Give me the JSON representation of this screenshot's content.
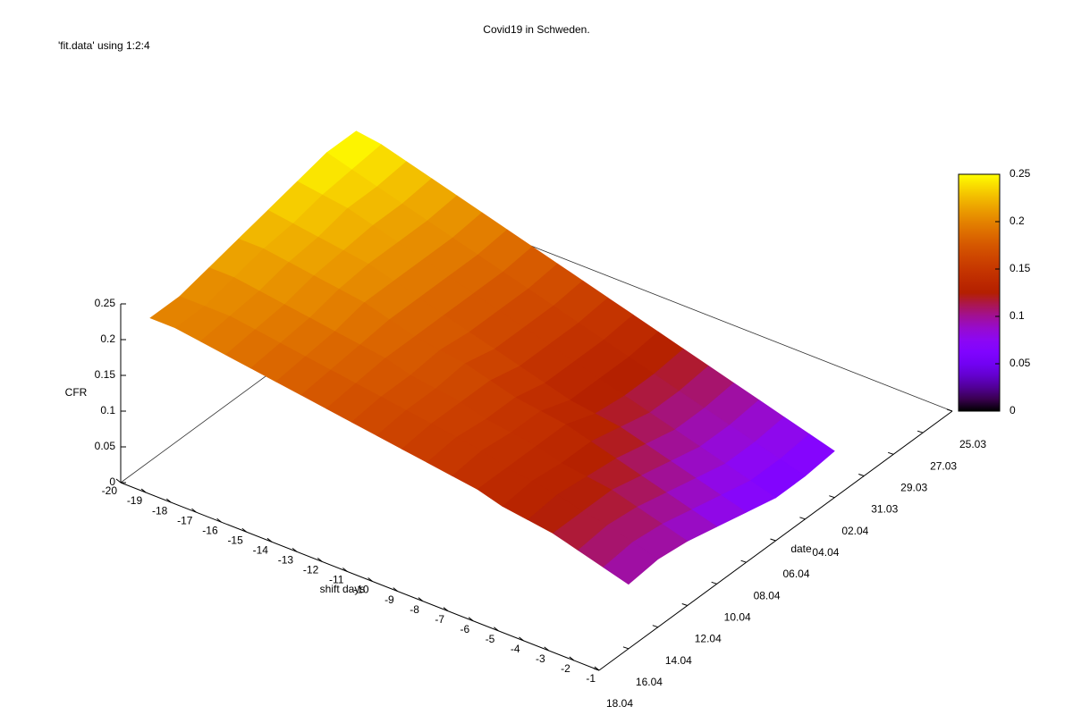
{
  "chart_data": {
    "type": "surface",
    "title": "Covid19 in Schweden.",
    "subtitle": "'fit.data' using 1:2:4",
    "xlabel": "shift days",
    "ylabel": "date",
    "zlabel": "CFR",
    "xlim": [
      -20,
      -1
    ],
    "xticks": [
      -20,
      -19,
      -18,
      -17,
      -16,
      -15,
      -14,
      -13,
      -12,
      -11,
      -10,
      -9,
      -8,
      -7,
      -6,
      -5,
      -4,
      -3,
      -2,
      -1
    ],
    "yticks": [
      "25.03",
      "27.03",
      "29.03",
      "31.03",
      "02.04",
      "04.04",
      "06.04",
      "08.04",
      "10.04",
      "12.04",
      "14.04",
      "16.04",
      "18.04"
    ],
    "zlim": [
      0,
      0.25
    ],
    "zticks": [
      0,
      0.05,
      0.1,
      0.15,
      0.2,
      0.25
    ],
    "cbticks": [
      0,
      0.05,
      0.1,
      0.15,
      0.2,
      0.25
    ],
    "palette": "gnuplot rgbformulae 7,5,15",
    "x": [
      -20,
      -19,
      -18,
      -17,
      -16,
      -15,
      -14,
      -13,
      -12,
      -11,
      -10,
      -9,
      -8,
      -7,
      -6,
      -5,
      -4,
      -3,
      -2,
      -1
    ],
    "rows": [
      {
        "date": "02.04",
        "values": [
          0.25,
          0.245,
          0.235,
          0.225,
          0.215,
          0.205,
          0.195,
          0.185,
          0.175,
          0.165,
          0.155,
          0.145,
          0.135,
          0.125,
          0.115,
          0.105,
          0.095,
          0.085,
          0.075,
          0.065
        ]
      },
      {
        "date": "04.04",
        "values": [
          0.25,
          0.24,
          0.23,
          0.22,
          0.21,
          0.2,
          0.19,
          0.18,
          0.17,
          0.16,
          0.15,
          0.14,
          0.13,
          0.12,
          0.11,
          0.1,
          0.09,
          0.08,
          0.07,
          0.06
        ]
      },
      {
        "date": "06.04",
        "values": [
          0.24,
          0.235,
          0.23,
          0.22,
          0.21,
          0.2,
          0.19,
          0.18,
          0.17,
          0.16,
          0.15,
          0.14,
          0.13,
          0.12,
          0.11,
          0.1,
          0.09,
          0.08,
          0.07,
          0.06
        ]
      },
      {
        "date": "08.04",
        "values": [
          0.23,
          0.225,
          0.22,
          0.215,
          0.21,
          0.2,
          0.19,
          0.18,
          0.17,
          0.16,
          0.15,
          0.14,
          0.13,
          0.125,
          0.12,
          0.11,
          0.1,
          0.09,
          0.08,
          0.07
        ]
      },
      {
        "date": "10.04",
        "values": [
          0.22,
          0.22,
          0.215,
          0.21,
          0.205,
          0.2,
          0.19,
          0.18,
          0.175,
          0.17,
          0.16,
          0.15,
          0.145,
          0.14,
          0.13,
          0.12,
          0.11,
          0.1,
          0.09,
          0.08
        ]
      },
      {
        "date": "12.04",
        "values": [
          0.21,
          0.21,
          0.205,
          0.2,
          0.195,
          0.19,
          0.185,
          0.18,
          0.17,
          0.165,
          0.16,
          0.15,
          0.145,
          0.14,
          0.13,
          0.125,
          0.12,
          0.11,
          0.1,
          0.09
        ]
      },
      {
        "date": "14.04",
        "values": [
          0.2,
          0.2,
          0.2,
          0.195,
          0.19,
          0.185,
          0.18,
          0.175,
          0.17,
          0.165,
          0.16,
          0.155,
          0.15,
          0.14,
          0.135,
          0.13,
          0.12,
          0.115,
          0.105,
          0.095
        ]
      },
      {
        "date": "16.04",
        "values": [
          0.2,
          0.2,
          0.195,
          0.19,
          0.185,
          0.18,
          0.175,
          0.17,
          0.165,
          0.16,
          0.155,
          0.15,
          0.145,
          0.14,
          0.13,
          0.125,
          0.12,
          0.11,
          0.1,
          0.09
        ]
      }
    ]
  }
}
